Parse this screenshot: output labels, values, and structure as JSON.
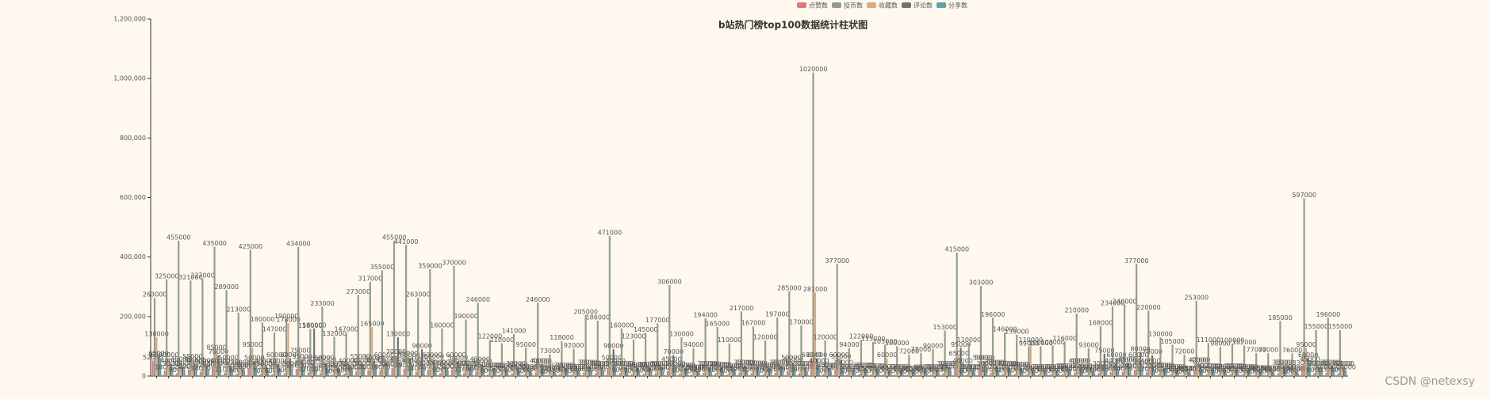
{
  "chart_data": {
    "type": "bar",
    "title": "b站热门榜top100数据统计柱状图",
    "categories": [
      null,
      null,
      null,
      null,
      null,
      null,
      null,
      null,
      null,
      null,
      null,
      null,
      null,
      null,
      null,
      null,
      null,
      null,
      null,
      null,
      null,
      null,
      null,
      null,
      null,
      null,
      null,
      null,
      null,
      null,
      null,
      null,
      null,
      null,
      null,
      null,
      null,
      null,
      null,
      null,
      null,
      null,
      null,
      null,
      null,
      null,
      null,
      null,
      null,
      null,
      null,
      null,
      null,
      null,
      null,
      null,
      null,
      null,
      null,
      null,
      null,
      null,
      null,
      null,
      null,
      null,
      null,
      null,
      null,
      null,
      null,
      null,
      null,
      null,
      null,
      null,
      null,
      null,
      null,
      null,
      null,
      null,
      null,
      null,
      null,
      null,
      null,
      null,
      null,
      null,
      null,
      null,
      null,
      null,
      null,
      null,
      null,
      null,
      null,
      null
    ],
    "ylim": [
      0,
      1200000
    ],
    "yticks": [
      0,
      {
        "value": 200000,
        "label": "200,000"
      },
      {
        "value": 400000,
        "label": "400,000"
      },
      {
        "value": 600000,
        "label": "600,000"
      },
      {
        "value": 800000,
        "label": "800,000"
      },
      {
        "value": 1000000,
        "label": "1,000,000"
      },
      {
        "value": 1200000,
        "label": "1,200,000"
      }
    ],
    "legend": "top",
    "series": [
      {
        "name": "点赞数",
        "color": "#d87c7c",
        "values": [
          52000,
          18000,
          9000,
          22000,
          14000,
          31000,
          11000,
          8000,
          26000,
          7000,
          6000,
          9000,
          24000,
          12000,
          10000,
          5000,
          8000,
          16000,
          20000,
          19000,
          28000,
          25000,
          14000,
          21000,
          9000,
          23000,
          11000,
          15000,
          6000,
          7000,
          9000,
          5000,
          13000,
          4000,
          7000,
          5000,
          12000,
          10000,
          27000,
          9000,
          7000,
          8000,
          10000,
          17000,
          8000,
          5000,
          11000,
          9000,
          6000,
          12000,
          10000,
          7000,
          11000,
          16000,
          10000,
          60000,
          7000,
          21000,
          5000,
          7000,
          6000,
          6000,
          5000,
          4000,
          4000,
          5000,
          9000,
          23000,
          6000,
          17000,
          11000,
          8000,
          8000,
          5000,
          6000,
          6000,
          7000,
          12000,
          5000,
          10000,
          13000,
          14000,
          21000,
          12000,
          7000,
          6000,
          4000,
          14000,
          6000,
          5000,
          6000,
          6000,
          4000,
          4000,
          10000,
          4000,
          33000,
          9000,
          11000,
          9000
        ]
      },
      {
        "name": "投币数",
        "color": "#919e8b",
        "values": [
          263000,
          325000,
          455000,
          321000,
          327000,
          435000,
          289000,
          213000,
          425000,
          180000,
          147000,
          190000,
          434000,
          158000,
          233000,
          132000,
          147000,
          273000,
          317000,
          355000,
          455000,
          441000,
          263000,
          359000,
          160000,
          370000,
          190000,
          246000,
          122000,
          110000,
          141000,
          95000,
          246000,
          73000,
          118000,
          92000,
          205000,
          186000,
          471000,
          160000,
          123000,
          145000,
          177000,
          306000,
          130000,
          94000,
          194000,
          165000,
          110000,
          217000,
          167000,
          120000,
          197000,
          285000,
          170000,
          1020000,
          120000,
          377000,
          94000,
          122000,
          115000,
          105000,
          100000,
          72000,
          78000,
          90000,
          153000,
          415000,
          110000,
          303000,
          196000,
          146000,
          139000,
          99000,
          100000,
          103000,
          116000,
          210000,
          93000,
          168000,
          234000,
          240000,
          377000,
          220000,
          130000,
          105000,
          72000,
          253000,
          111000,
          98000,
          109000,
          102000,
          77000,
          77000,
          185000,
          76000,
          597000,
          155000,
          196000,
          155000
        ]
      },
      {
        "name": "收藏数",
        "color": "#d7ab82",
        "values": [
          130000,
          60000,
          45000,
          55000,
          40000,
          85000,
          50000,
          35000,
          95000,
          40000,
          60000,
          178000,
          75000,
          45000,
          50000,
          30000,
          40000,
          55000,
          165000,
          60000,
          70000,
          65000,
          45000,
          60000,
          35000,
          60000,
          30000,
          45000,
          25000,
          25000,
          30000,
          20000,
          40000,
          18000,
          25000,
          20000,
          35000,
          30000,
          50000,
          30000,
          25000,
          28000,
          30000,
          45000,
          25000,
          18000,
          30000,
          28000,
          22000,
          35000,
          32000,
          25000,
          35000,
          50000,
          30000,
          281000,
          25000,
          60000,
          20000,
          25000,
          22000,
          60000,
          20000,
          15000,
          18000,
          20000,
          30000,
          65000,
          20000,
          50000,
          35000,
          30000,
          28000,
          110000,
          20000,
          20000,
          22000,
          40000,
          18000,
          30000,
          40000,
          42000,
          60000,
          40000,
          25000,
          20000,
          15000,
          42000,
          22000,
          20000,
          22000,
          20000,
          16000,
          16000,
          35000,
          16000,
          95000,
          30000,
          35000,
          30000
        ]
      },
      {
        "name": "评论数",
        "color": "#6e7074",
        "values": [
          65000,
          40000,
          30000,
          45000,
          35000,
          70000,
          35000,
          25000,
          50000,
          30000,
          40000,
          60000,
          55000,
          160000,
          45000,
          25000,
          30000,
          40000,
          50000,
          45000,
          130000,
          60000,
          90000,
          55000,
          30000,
          50000,
          30000,
          40000,
          25000,
          22000,
          28000,
          18000,
          40000,
          15000,
          25000,
          20000,
          35000,
          30000,
          90000,
          30000,
          25000,
          28000,
          30000,
          70000,
          25000,
          18000,
          30000,
          28000,
          22000,
          35000,
          32000,
          25000,
          35000,
          45000,
          30000,
          60000,
          25000,
          55000,
          20000,
          25000,
          22000,
          20000,
          20000,
          15000,
          18000,
          20000,
          30000,
          95000,
          20000,
          50000,
          35000,
          30000,
          28000,
          20000,
          20000,
          20000,
          22000,
          40000,
          18000,
          75000,
          60000,
          45000,
          80000,
          70000,
          25000,
          20000,
          15000,
          42000,
          22000,
          20000,
          22000,
          20000,
          16000,
          16000,
          35000,
          16000,
          60000,
          30000,
          35000,
          30000
        ]
      },
      {
        "name": "分享数",
        "color": "#61a0a8",
        "values": [
          60000,
          30000,
          20000,
          40000,
          25000,
          40000,
          25000,
          20000,
          35000,
          20000,
          25000,
          30000,
          35000,
          25000,
          25000,
          15000,
          20000,
          30000,
          40000,
          30000,
          45000,
          40000,
          30000,
          35000,
          20000,
          35000,
          18000,
          25000,
          15000,
          15000,
          18000,
          12000,
          25000,
          10000,
          15000,
          12000,
          20000,
          18000,
          40000,
          18000,
          15000,
          16000,
          18000,
          30000,
          15000,
          12000,
          18000,
          16000,
          14000,
          20000,
          18000,
          15000,
          20000,
          30000,
          18000,
          40000,
          15000,
          35000,
          12000,
          15000,
          14000,
          14000,
          12000,
          10000,
          11000,
          12000,
          18000,
          40000,
          12000,
          30000,
          20000,
          18000,
          16000,
          14000,
          12000,
          12000,
          14000,
          22000,
          11000,
          18000,
          22000,
          24000,
          35000,
          22000,
          15000,
          12000,
          10000,
          24000,
          13000,
          12000,
          13000,
          12000,
          10000,
          10000,
          20000,
          10000,
          45000,
          18000,
          20000,
          18000
        ]
      }
    ]
  },
  "watermark": "CSDN @netexsy"
}
